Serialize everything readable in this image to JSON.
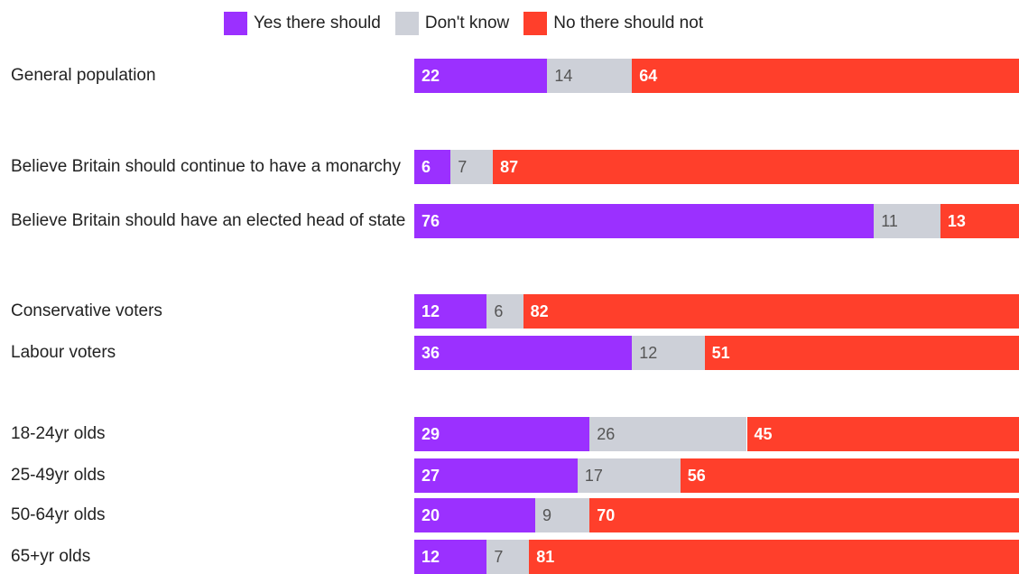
{
  "chart_data": {
    "type": "bar",
    "orientation": "horizontal",
    "stacked": true,
    "legend_position": "top",
    "xlim": [
      0,
      100
    ],
    "categories": [
      "General population",
      "Believe Britain should continue to have a monarchy",
      "Believe Britain should have an elected head of state",
      "Conservative voters",
      "Labour voters",
      "18-24yr olds",
      "25-49yr olds",
      "50-64yr olds",
      "65+yr olds"
    ],
    "series": [
      {
        "name": "Yes there should",
        "color": "#9b30ff",
        "values": [
          22,
          6,
          76,
          12,
          36,
          29,
          27,
          20,
          12
        ]
      },
      {
        "name": "Don't know",
        "color": "#cdd0d8",
        "values": [
          14,
          7,
          11,
          6,
          12,
          26,
          17,
          9,
          7
        ]
      },
      {
        "name": "No there should not",
        "color": "#ff3f2b",
        "values": [
          64,
          87,
          13,
          82,
          51,
          45,
          56,
          70,
          81
        ]
      }
    ]
  }
}
